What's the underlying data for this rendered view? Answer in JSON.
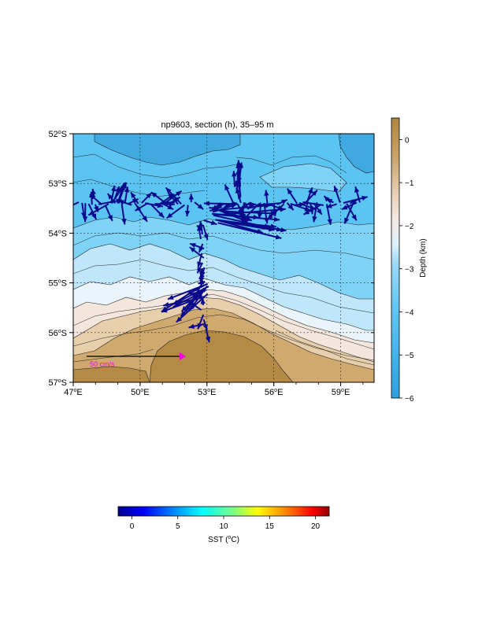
{
  "map": {
    "title": "np9603, section (h), 35–95 m",
    "lon_labels": [
      "47",
      "50",
      "53",
      "56",
      "59"
    ],
    "lat_labels": [
      "52",
      "53",
      "54",
      "55",
      "56",
      "57"
    ],
    "lon_suffix": "E",
    "lat_suffix": "S",
    "degree_symbol": "o",
    "lon_range": [
      47,
      60.5
    ],
    "lat_range": [
      -57,
      -52
    ],
    "grid": true,
    "scale_arrow_label": "50 cm/s",
    "scale_arrow_value_cm_s": 50
  },
  "depth_colorbar": {
    "label": "Depth (km)",
    "tick_labels": [
      "0",
      "−1",
      "−2",
      "−3",
      "−4",
      "−5",
      "−6"
    ],
    "range_km": [
      -6,
      0.5
    ],
    "colors": {
      "land_dark": "#b58a44",
      "land_mid": "#cfa96e",
      "land_light": "#e6cfaa",
      "shelf": "#f3e6dc",
      "pale": "#e9f4fb",
      "light_blue": "#bfe6fa",
      "mid_blue": "#7fd3f6",
      "sky_blue": "#5cc4f2",
      "deep_blue": "#3fa9e0"
    }
  },
  "sst_colorbar": {
    "label_prefix": "SST (",
    "label_unit": "C)",
    "degree_symbol": "o",
    "tick_labels": [
      "0",
      "5",
      "10",
      "15",
      "20"
    ],
    "range_c": [
      -1.5,
      21.5
    ]
  },
  "vector_color": "#0a0a8c",
  "scale_arrow_color": "#ee00ee"
}
